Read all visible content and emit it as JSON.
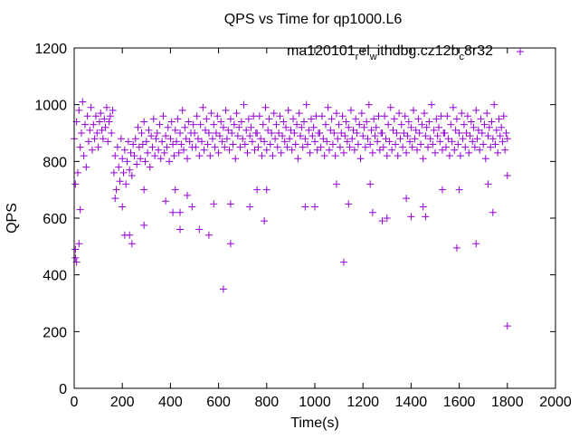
{
  "chart_data": {
    "type": "scatter",
    "title": "QPS vs Time for qp1000.L6",
    "xlabel": "Time(s)",
    "ylabel": "QPS",
    "xlim": [
      0,
      2000
    ],
    "ylim": [
      0,
      1200
    ],
    "xticks": [
      0,
      200,
      400,
      600,
      800,
      1000,
      1200,
      1400,
      1600,
      1800,
      2000
    ],
    "yticks": [
      0,
      200,
      400,
      600,
      800,
      1000,
      1200
    ],
    "grid": false,
    "legend": {
      "position": "top-right",
      "main": "ma120101",
      "sub1": "r",
      "mid1": "el",
      "sub2": "w",
      "mid2": "ithdbg.cz12b",
      "sub3": "c",
      "tail": "8r32"
    },
    "series": [
      {
        "name": "ma120101_rel_withdbg.cz12b_c8r32",
        "color": "#9400D3",
        "marker": "+",
        "x_start": 0,
        "x_step": 5,
        "y": [
          880,
          720,
          940,
          760,
          980,
          850,
          900,
          1010,
          820,
          930,
          780,
          960,
          870,
          910,
          990,
          840,
          930,
          880,
          960,
          900,
          850,
          940,
          970,
          910,
          880,
          950,
          920,
          990,
          870,
          940,
          960,
          900,
          980,
          760,
          820,
          700,
          850,
          780,
          730,
          880,
          810,
          760,
          840,
          720,
          800,
          870,
          770,
          830,
          750,
          860,
          820,
          880,
          790,
          920,
          850,
          810,
          900,
          860,
          940,
          800,
          870,
          830,
          910,
          780,
          890,
          850,
          950,
          820,
          880,
          900,
          840,
          930,
          810,
          870,
          960,
          830,
          890,
          850,
          920,
          800,
          880,
          940,
          860,
          820,
          910,
          870,
          950,
          830,
          900,
          860,
          980,
          840,
          920,
          880,
          810,
          940,
          870,
          900,
          850,
          930,
          900,
          850,
          960,
          880,
          820,
          930,
          870,
          990,
          840,
          910,
          950,
          860,
          900,
          820,
          970,
          880,
          930,
          850,
          900,
          960,
          830,
          890,
          940,
          870,
          920,
          850,
          980,
          880,
          910,
          840,
          950,
          900,
          860,
          930,
          810,
          970,
          890,
          920,
          850,
          940,
          880,
          1000,
          860,
          910,
          830,
          950,
          890,
          920,
          870,
          960,
          840,
          900,
          900,
          850,
          960,
          880,
          820,
          930,
          870,
          990,
          840,
          910,
          950,
          860,
          900,
          820,
          970,
          880,
          930,
          850,
          900,
          960,
          830,
          890,
          940,
          870,
          920,
          850,
          980,
          880,
          910,
          840,
          950,
          900,
          860,
          930,
          810,
          970,
          890,
          920,
          850,
          940,
          880,
          1000,
          860,
          910,
          830,
          950,
          890,
          920,
          870,
          960,
          840,
          900,
          900,
          850,
          960,
          880,
          820,
          930,
          870,
          990,
          840,
          910,
          950,
          860,
          900,
          820,
          970,
          880,
          930,
          850,
          900,
          960,
          830,
          890,
          940,
          870,
          920,
          850,
          980,
          880,
          910,
          840,
          950,
          900,
          860,
          930,
          810,
          970,
          890,
          920,
          850,
          940,
          880,
          1000,
          860,
          910,
          830,
          950,
          890,
          920,
          870,
          960,
          840,
          900,
          900,
          850,
          960,
          880,
          820,
          930,
          870,
          990,
          840,
          910,
          950,
          860,
          900,
          820,
          970,
          880,
          930,
          850,
          900,
          960,
          830,
          890,
          940,
          870,
          920,
          850,
          980,
          880,
          910,
          840,
          950,
          900,
          860,
          930,
          810,
          970,
          890,
          920,
          850,
          940,
          880,
          1000,
          860,
          910,
          830,
          950,
          890,
          920,
          870,
          960,
          840,
          900,
          900,
          850,
          960,
          880,
          820,
          930,
          870,
          990,
          840,
          910,
          950,
          860,
          900,
          820,
          970,
          880,
          930,
          850,
          900,
          960,
          830,
          890,
          940,
          870,
          920,
          850,
          980,
          880,
          910,
          840,
          950,
          900,
          860,
          930,
          810,
          970,
          890,
          920,
          850,
          940,
          880,
          1000,
          860,
          910,
          830,
          950,
          890,
          920,
          870,
          960,
          840,
          900,
          880
        ],
        "outliers": [
          [
            5,
            490
          ],
          [
            5,
            460
          ],
          [
            10,
            445
          ],
          [
            20,
            510
          ],
          [
            25,
            630
          ],
          [
            170,
            670
          ],
          [
            200,
            640
          ],
          [
            210,
            540
          ],
          [
            230,
            540
          ],
          [
            240,
            510
          ],
          [
            290,
            575
          ],
          [
            290,
            700
          ],
          [
            380,
            660
          ],
          [
            410,
            620
          ],
          [
            420,
            700
          ],
          [
            440,
            560
          ],
          [
            440,
            620
          ],
          [
            470,
            680
          ],
          [
            490,
            640
          ],
          [
            520,
            560
          ],
          [
            560,
            540
          ],
          [
            580,
            650
          ],
          [
            620,
            350
          ],
          [
            650,
            510
          ],
          [
            650,
            650
          ],
          [
            730,
            640
          ],
          [
            760,
            700
          ],
          [
            790,
            590
          ],
          [
            800,
            700
          ],
          [
            960,
            640
          ],
          [
            1000,
            640
          ],
          [
            1090,
            720
          ],
          [
            1120,
            445
          ],
          [
            1140,
            650
          ],
          [
            1230,
            720
          ],
          [
            1240,
            620
          ],
          [
            1280,
            590
          ],
          [
            1300,
            600
          ],
          [
            1380,
            670
          ],
          [
            1400,
            605
          ],
          [
            1450,
            640
          ],
          [
            1460,
            605
          ],
          [
            1530,
            700
          ],
          [
            1590,
            495
          ],
          [
            1600,
            700
          ],
          [
            1670,
            510
          ],
          [
            1720,
            720
          ],
          [
            1740,
            620
          ],
          [
            1800,
            220
          ],
          [
            1800,
            750
          ]
        ]
      }
    ]
  }
}
